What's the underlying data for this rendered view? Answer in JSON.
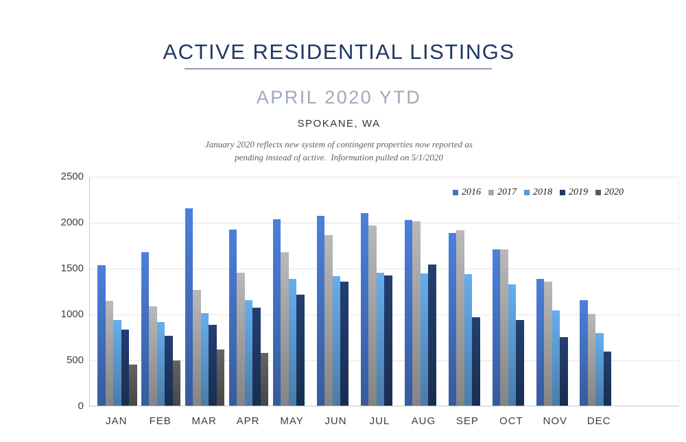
{
  "header": {
    "title": "ACTIVE RESIDENTIAL LISTINGS",
    "subtitle": "APRIL 2020 YTD",
    "location": "SPOKANE, WA",
    "note_line1": "January 2020 reflects new system of contingent properties now reported as",
    "note_line2": "pending instead of active.  Information pulled on 5/1/2020"
  },
  "colors": {
    "title": "#1e3765",
    "subtitle": "#9daabd",
    "gridline": "#e4e4e4",
    "axis_line": "#c6c6c6"
  },
  "chart_data": {
    "type": "bar",
    "title": "ACTIVE RESIDENTIAL LISTINGS",
    "subtitle": "APRIL 2020 YTD",
    "xlabel": "",
    "ylabel": "",
    "ylim": [
      0,
      2500
    ],
    "yticks": [
      0,
      500,
      1000,
      1500,
      2000,
      2500
    ],
    "grid": true,
    "legend_position": "top-right",
    "categories": [
      "JAN",
      "FEB",
      "MAR",
      "APR",
      "MAY",
      "JUN",
      "JUL",
      "AUG",
      "SEP",
      "OCT",
      "NOV",
      "DEC"
    ],
    "series": [
      {
        "name": "2016",
        "color": "#4472C4",
        "values": [
          1530,
          1670,
          2150,
          1920,
          2030,
          2070,
          2100,
          2020,
          1880,
          1700,
          1380,
          1150
        ]
      },
      {
        "name": "2017",
        "color": "#A5A5A5",
        "values": [
          1140,
          1080,
          1260,
          1450,
          1670,
          1860,
          1960,
          2010,
          1910,
          1700,
          1350,
          1000
        ]
      },
      {
        "name": "2018",
        "color": "#5B9BD5",
        "values": [
          930,
          910,
          1010,
          1150,
          1380,
          1410,
          1450,
          1440,
          1430,
          1320,
          1040,
          790
        ]
      },
      {
        "name": "2019",
        "color": "#1F3864",
        "values": [
          830,
          760,
          880,
          1070,
          1210,
          1350,
          1420,
          1540,
          960,
          930,
          750,
          590
        ]
      },
      {
        "name": "2020",
        "color": "#595959",
        "values": [
          450,
          490,
          615,
          575,
          null,
          null,
          null,
          null,
          null,
          null,
          null,
          null
        ]
      }
    ]
  }
}
